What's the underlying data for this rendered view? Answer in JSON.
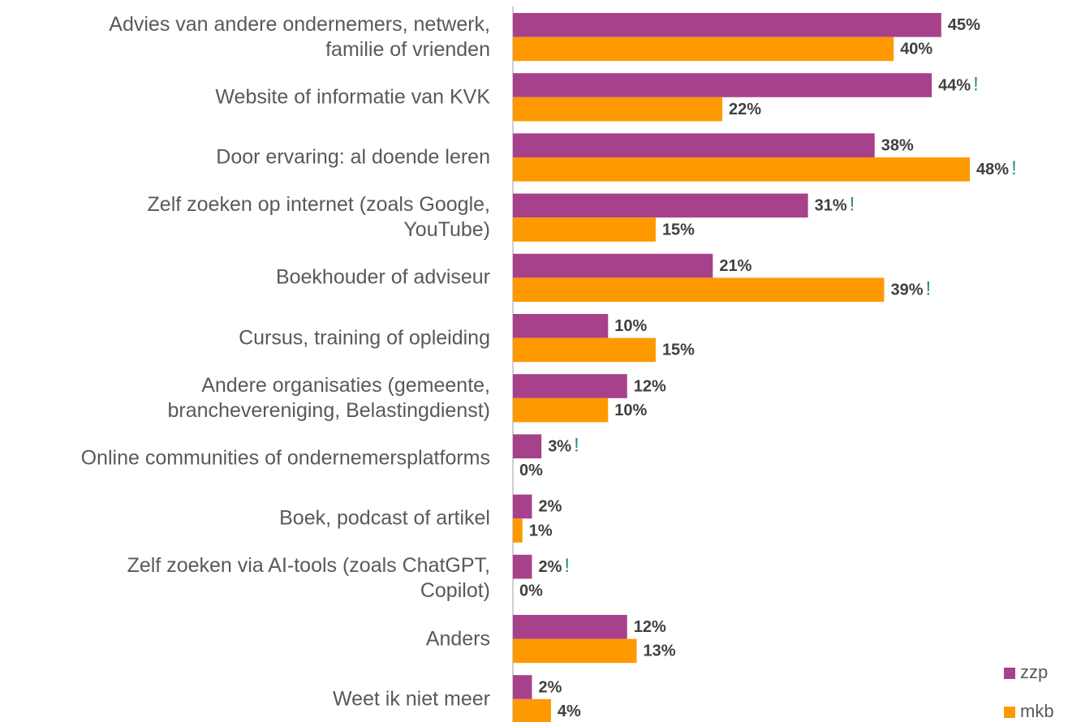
{
  "chart_data": {
    "type": "bar",
    "orientation": "horizontal",
    "categories": [
      "Advies van andere ondernemers, netwerk,\nfamilie of vrienden",
      "Website of informatie van KVK",
      "Door ervaring: al doende leren",
      "Zelf zoeken op internet (zoals Google,\nYouTube)",
      "Boekhouder of adviseur",
      "Cursus, training of opleiding",
      "Andere organisaties (gemeente,\nbranchevereniging, Belastingdienst)",
      "Online communities of ondernemersplatforms",
      "Boek, podcast of artikel",
      "Zelf zoeken via AI-tools (zoals ChatGPT,\nCopilot)",
      "Anders",
      "Weet ik niet meer"
    ],
    "series": [
      {
        "name": "zzp",
        "color": "#a8418b",
        "values": [
          45,
          44,
          38,
          31,
          21,
          10,
          12,
          3,
          2,
          2,
          12,
          2
        ],
        "value_labels": [
          "45%",
          "44%",
          "38%",
          "31%",
          "21%",
          "10%",
          "12%",
          "3%",
          "2%",
          "2%",
          "12%",
          "2%"
        ],
        "markers": [
          null,
          "!",
          null,
          "!",
          null,
          null,
          null,
          "!",
          null,
          "!",
          null,
          null
        ]
      },
      {
        "name": "mkb",
        "color": "#ff9900",
        "values": [
          40,
          22,
          48,
          15,
          39,
          15,
          10,
          0,
          1,
          0,
          13,
          4
        ],
        "value_labels": [
          "40%",
          "22%",
          "48%",
          "15%",
          "39%",
          "15%",
          "10%",
          "0%",
          "1%",
          "0%",
          "13%",
          "4%"
        ],
        "markers": [
          null,
          null,
          "!",
          null,
          "!",
          null,
          null,
          null,
          null,
          null,
          null,
          null
        ]
      }
    ],
    "legend": "bottom-right"
  }
}
